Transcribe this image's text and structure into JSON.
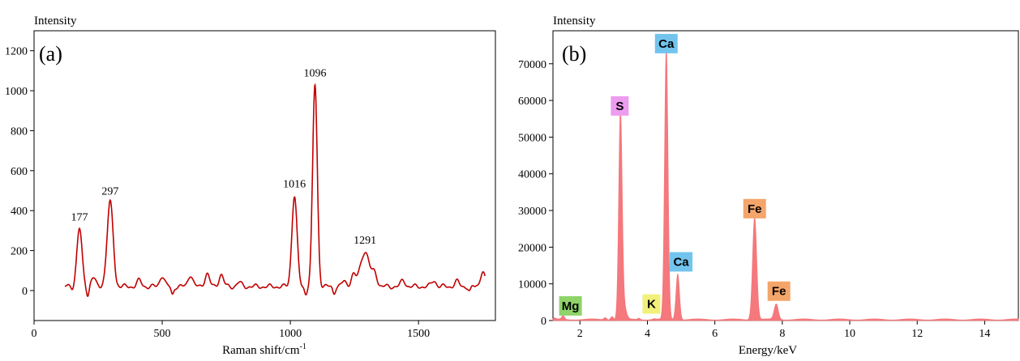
{
  "chart_data": [
    {
      "type": "line",
      "panel_label": "(a)",
      "ylabel": "Intensity",
      "xlabel": "Raman shift/cm",
      "xlabel_sup": "-1",
      "xlim": [
        0,
        1800
      ],
      "ylim": [
        -150,
        1300
      ],
      "xticks": [
        0,
        500,
        1000,
        1500
      ],
      "xtick_labels": [
        "0",
        "500",
        "1000",
        "1500"
      ],
      "yticks": [
        0,
        200,
        400,
        600,
        800,
        1000,
        1200
      ],
      "ytick_labels": [
        "0",
        "200",
        "400",
        "600",
        "800",
        "1000",
        "1200"
      ],
      "line_color": "#c00000",
      "baseline": 20,
      "start_x": 120,
      "end_x": 1760,
      "peaks": [
        {
          "x": 177,
          "y": 310,
          "width": 10,
          "label": "177"
        },
        {
          "x": 297,
          "y": 440,
          "width": 12,
          "label": "297"
        },
        {
          "x": 1016,
          "y": 475,
          "width": 10,
          "label": "1016"
        },
        {
          "x": 1096,
          "y": 1030,
          "width": 9,
          "label": "1096"
        },
        {
          "x": 1291,
          "y": 195,
          "width": 18,
          "label": "1291"
        }
      ],
      "minor_bumps": [
        {
          "x": 230,
          "y": 65
        },
        {
          "x": 410,
          "y": 50
        },
        {
          "x": 500,
          "y": 75
        },
        {
          "x": 610,
          "y": 80
        },
        {
          "x": 675,
          "y": 85
        },
        {
          "x": 730,
          "y": 80
        },
        {
          "x": 800,
          "y": 40
        },
        {
          "x": 1210,
          "y": 45
        },
        {
          "x": 1245,
          "y": 75
        },
        {
          "x": 1330,
          "y": 80
        },
        {
          "x": 1440,
          "y": 50
        },
        {
          "x": 1560,
          "y": 50
        },
        {
          "x": 1650,
          "y": 45
        },
        {
          "x": 1750,
          "y": 95
        }
      ],
      "dips": [
        {
          "x": 150,
          "y": 10
        },
        {
          "x": 210,
          "y": -25
        },
        {
          "x": 320,
          "y": 5
        },
        {
          "x": 540,
          "y": -20
        },
        {
          "x": 1060,
          "y": -15
        },
        {
          "x": 1170,
          "y": -10
        },
        {
          "x": 1700,
          "y": -5
        }
      ]
    },
    {
      "type": "area",
      "panel_label": "(b)",
      "ylabel": "Intensity",
      "xlabel": "Energy/keV",
      "xlim": [
        1.2,
        15
      ],
      "ylim": [
        0,
        79000
      ],
      "xticks": [
        2,
        4,
        6,
        8,
        10,
        12,
        14
      ],
      "xtick_labels": [
        "2",
        "4",
        "6",
        "8",
        "10",
        "12",
        "14"
      ],
      "yticks": [
        0,
        10000,
        20000,
        30000,
        40000,
        50000,
        60000,
        70000
      ],
      "ytick_labels": [
        "0",
        "10000",
        "20000",
        "30000",
        "40000",
        "50000",
        "60000",
        "70000"
      ],
      "fill_color": "#f4787c",
      "peaks": [
        {
          "x": 1.25,
          "y": 300,
          "width": 0.03
        },
        {
          "x": 1.5,
          "y": 1000,
          "width": 0.04
        },
        {
          "x": 2.75,
          "y": 600,
          "width": 0.04
        },
        {
          "x": 2.95,
          "y": 900,
          "width": 0.04
        },
        {
          "x": 3.2,
          "y": 56000,
          "width": 0.05
        },
        {
          "x": 3.3,
          "y": 3500,
          "width": 0.07
        },
        {
          "x": 3.75,
          "y": 400,
          "width": 0.04
        },
        {
          "x": 4.2,
          "y": 200,
          "width": 0.04
        },
        {
          "x": 4.56,
          "y": 74000,
          "width": 0.05
        },
        {
          "x": 4.9,
          "y": 12500,
          "width": 0.05
        },
        {
          "x": 7.18,
          "y": 28000,
          "width": 0.06
        },
        {
          "x": 7.82,
          "y": 4200,
          "width": 0.06
        }
      ],
      "background": 300,
      "element_labels": [
        {
          "text": "Mg",
          "x": 1.72,
          "y": 4000,
          "color": "#8fd36a"
        },
        {
          "text": "K",
          "x": 4.12,
          "y": 4500,
          "color": "#f2f07a"
        },
        {
          "text": "S",
          "x": 3.18,
          "y": 58500,
          "color": "#ee9cf0"
        },
        {
          "text": "Ca",
          "x": 4.56,
          "y": 75500,
          "color": "#72c4ee"
        },
        {
          "text": "Ca",
          "x": 5.0,
          "y": 16000,
          "color": "#72c4ee"
        },
        {
          "text": "Fe",
          "x": 7.18,
          "y": 30500,
          "color": "#f4a56a"
        },
        {
          "text": "Fe",
          "x": 7.9,
          "y": 8000,
          "color": "#f4a56a"
        }
      ]
    }
  ]
}
